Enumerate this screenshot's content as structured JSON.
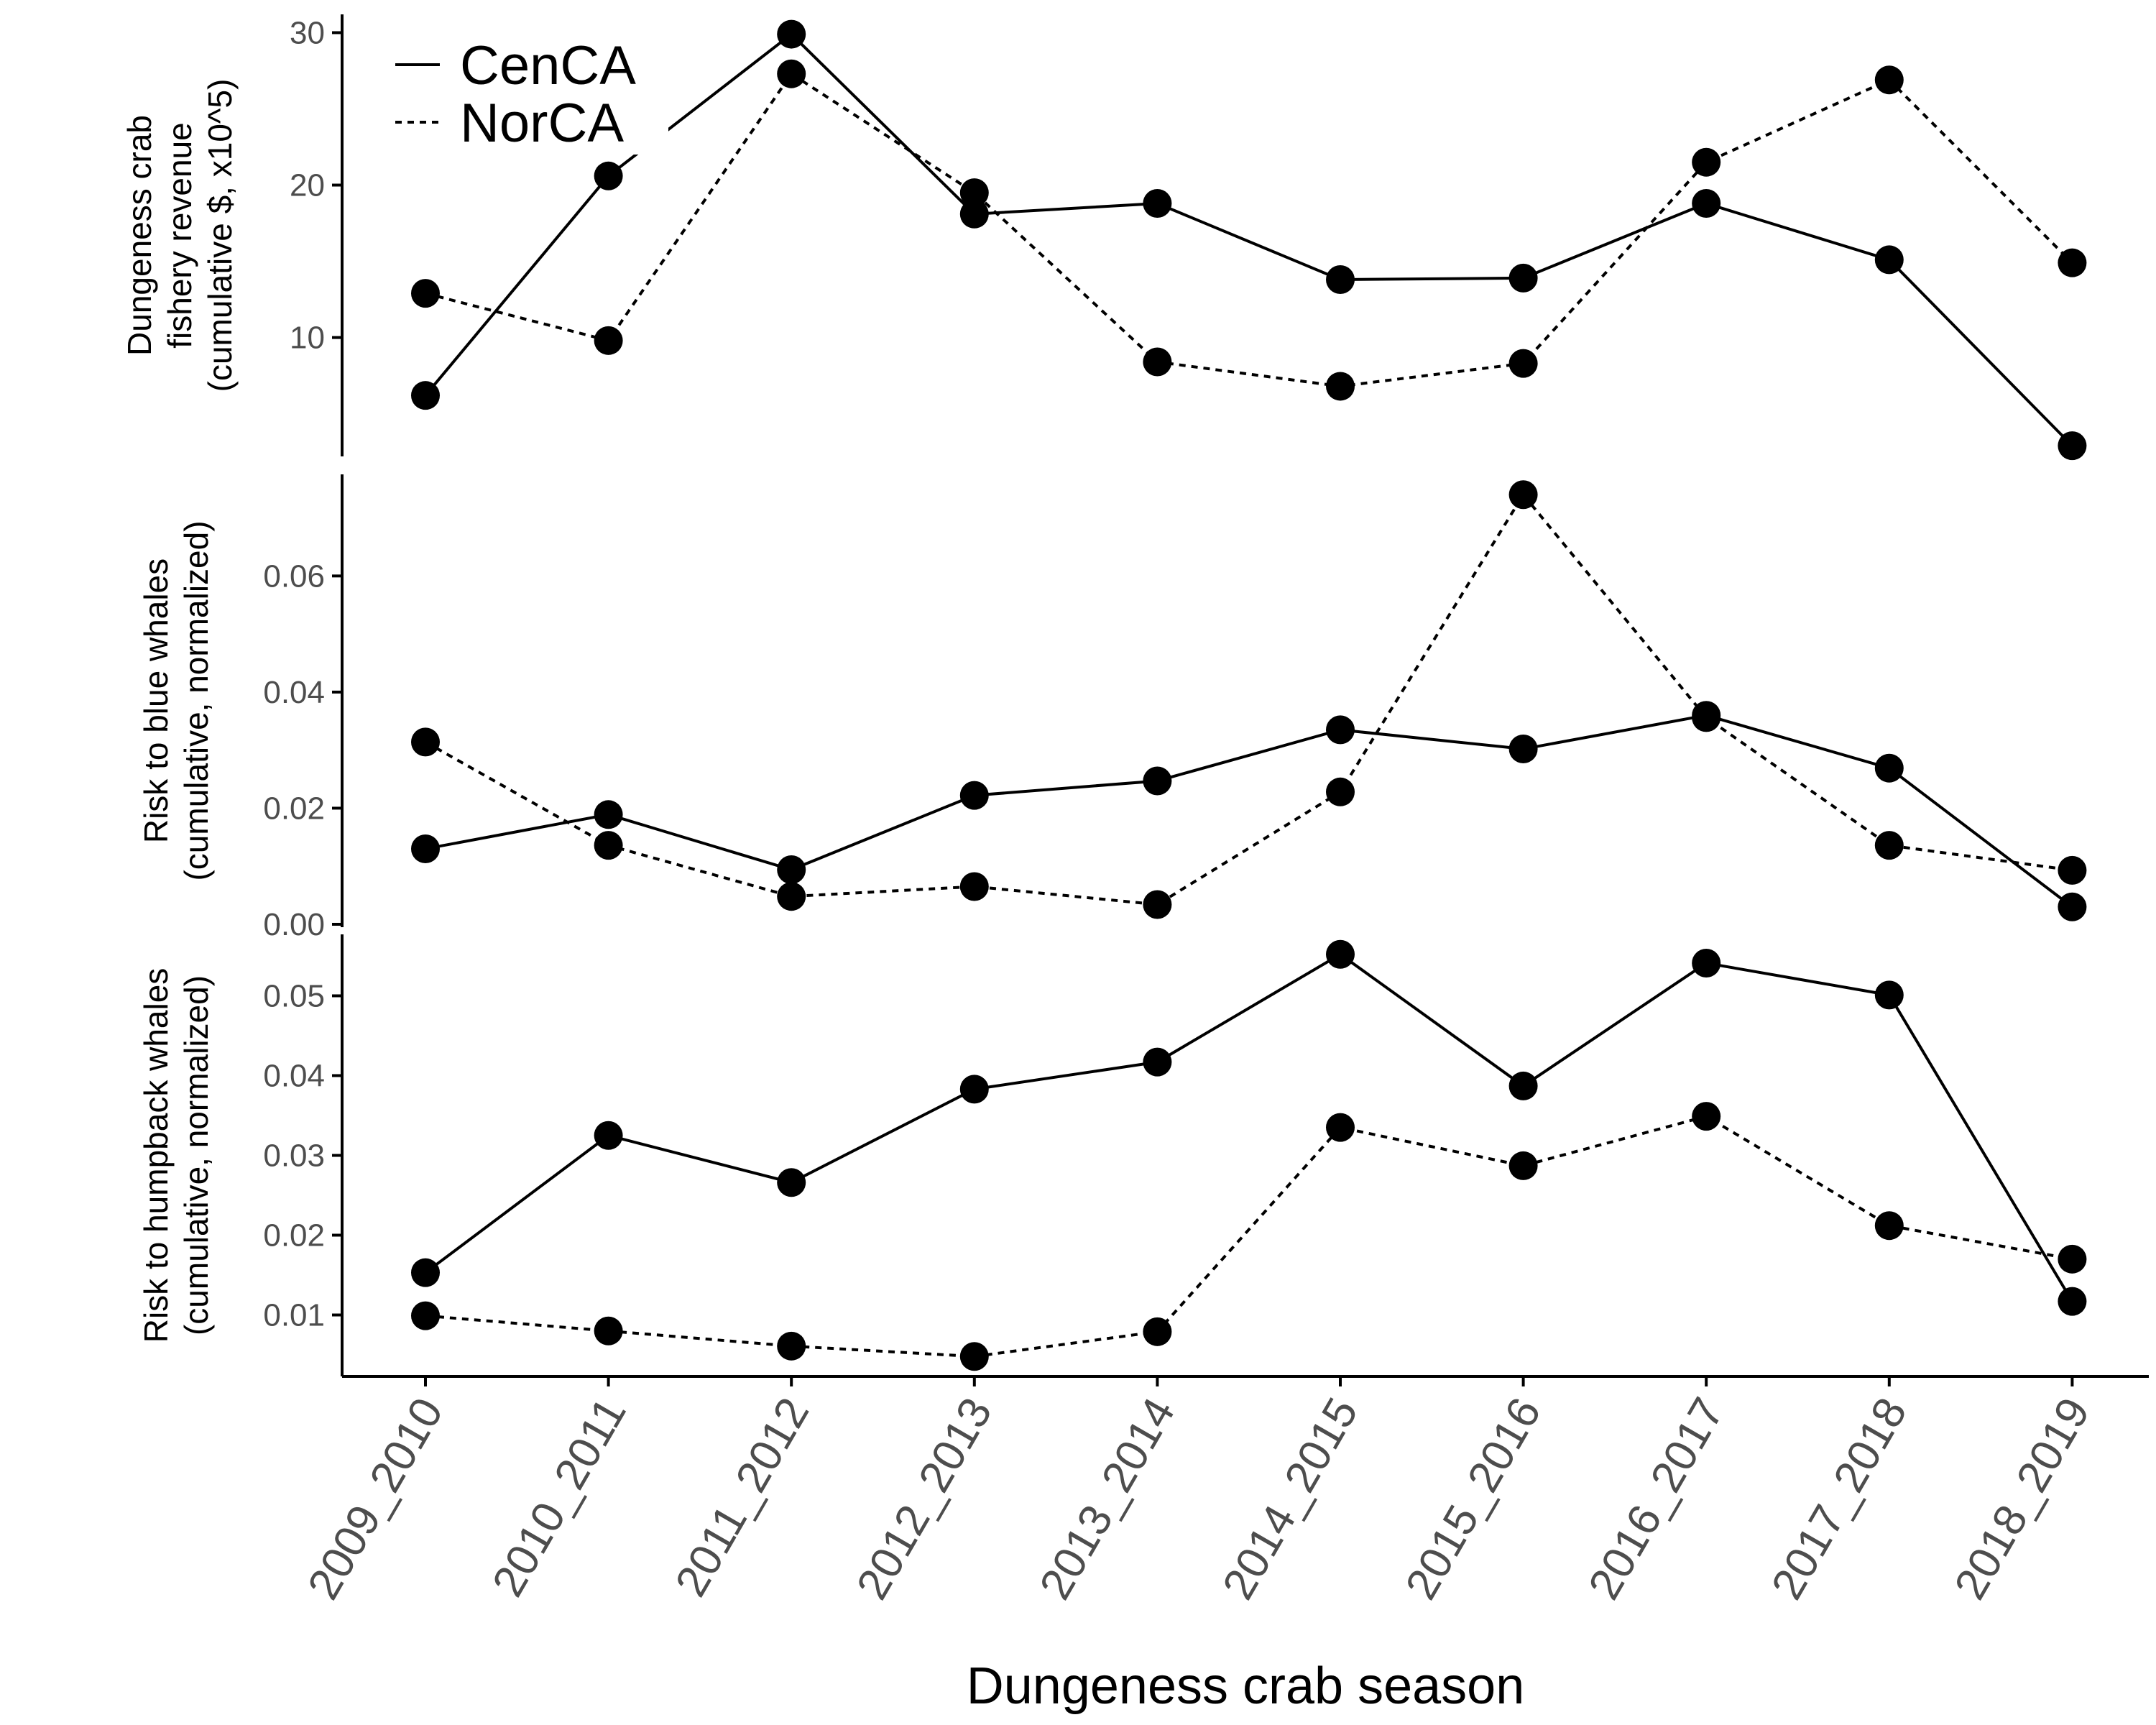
{
  "chart_data": {
    "type": "line",
    "xlabel": "Dungeness crab season",
    "categories": [
      "2009_2010",
      "2010_2011",
      "2011_2012",
      "2012_2013",
      "2013_2014",
      "2014_2015",
      "2015_2016",
      "2016_2017",
      "2017_2018",
      "2018_2019"
    ],
    "legend": {
      "position": "top-left",
      "entries": [
        {
          "label": "CenCA",
          "style": "solid"
        },
        {
          "label": "NorCA",
          "style": "dotted"
        }
      ]
    },
    "grid": false,
    "panels": [
      {
        "ylabel": [
          "Dungeness crab",
          "fishery revenue",
          "(cumulative $, x10^5)"
        ],
        "ylim": [
          2.2,
          31.2
        ],
        "yticks": [
          10,
          20,
          30
        ],
        "yticklabels": [
          "10",
          "20",
          "30"
        ],
        "series": [
          {
            "name": "CenCA",
            "style": "solid",
            "values": [
              6.2,
              20.6,
              29.9,
              18.1,
              18.8,
              13.8,
              13.9,
              18.8,
              15.1,
              2.9
            ]
          },
          {
            "name": "NorCA",
            "style": "dotted",
            "values": [
              12.9,
              9.8,
              27.3,
              19.5,
              8.4,
              6.8,
              8.3,
              21.5,
              26.9,
              14.9
            ]
          }
        ]
      },
      {
        "ylabel": [
          "Risk to blue whales",
          "(cumulative, normalized)"
        ],
        "ylim": [
          -0.0005,
          0.0775
        ],
        "yticks": [
          0,
          0.02,
          0.04,
          0.06
        ],
        "yticklabels": [
          "0.00",
          "0.02",
          "0.04",
          "0.06"
        ],
        "series": [
          {
            "name": "CenCA",
            "style": "solid",
            "values": [
              0.013,
              0.0189,
              0.0094,
              0.0222,
              0.0247,
              0.0335,
              0.0302,
              0.036,
              0.0269,
              0.003
            ]
          },
          {
            "name": "NorCA",
            "style": "dotted",
            "values": [
              0.0314,
              0.0136,
              0.0048,
              0.0065,
              0.0034,
              0.0228,
              0.074,
              0.0356,
              0.0136,
              0.0093
            ]
          }
        ]
      },
      {
        "ylabel": [
          "Risk to humpback whales",
          "(cumulative, normalized)"
        ],
        "ylim": [
          0.0023,
          0.0577
        ],
        "yticks": [
          0.01,
          0.02,
          0.03,
          0.04,
          0.05
        ],
        "yticklabels": [
          "0.01",
          "0.02",
          "0.03",
          "0.04",
          "0.05"
        ],
        "series": [
          {
            "name": "CenCA",
            "style": "solid",
            "values": [
              0.0153,
              0.0325,
              0.0266,
              0.0383,
              0.0417,
              0.0552,
              0.0387,
              0.0541,
              0.0501,
              0.0117
            ]
          },
          {
            "name": "NorCA",
            "style": "dotted",
            "values": [
              0.0099,
              0.008,
              0.0061,
              0.0048,
              0.0079,
              0.0335,
              0.0287,
              0.0349,
              0.0212,
              0.017
            ]
          }
        ]
      }
    ]
  }
}
